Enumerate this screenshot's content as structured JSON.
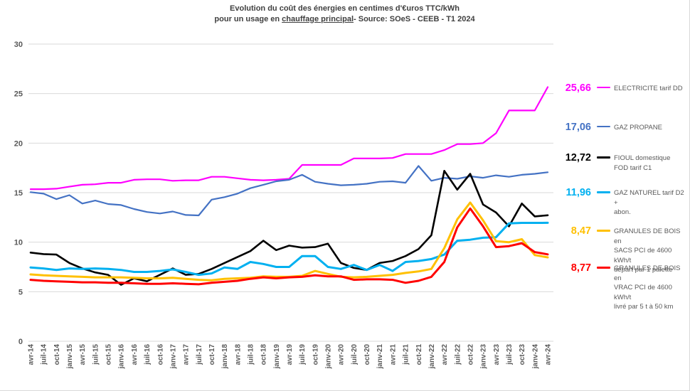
{
  "title": {
    "line1": "Evolution du coût des énergies en centimes d'€uros TTC/kWh",
    "line2_prefix": "pour un usage en ",
    "line2_underlined": "chauffage principal",
    "line2_suffix": "- Source: SOeS - CEEB - T1 2024"
  },
  "chart_data": {
    "type": "line",
    "title": "Evolution du coût des énergies en centimes d'€uros TTC/kWh pour un usage en chauffage principal - Source: SOeS - CEEB - T1 2024",
    "xlabel": "",
    "ylabel": "centimes d'euros TTC/kWh",
    "ylim": [
      0,
      30
    ],
    "y_ticks": [
      "0",
      "5",
      "10",
      "15",
      "20",
      "25",
      "30"
    ],
    "grid": "horizontal",
    "legend_position": "right",
    "x_labels": [
      "avr-14",
      "juil-14",
      "oct-14",
      "janv-15",
      "avr-15",
      "juil-15",
      "oct-15",
      "janv-16",
      "avr-16",
      "juil-16",
      "oct-16",
      "janv-17",
      "avr-17",
      "juil-17",
      "oct-17",
      "janv-18",
      "avr-18",
      "juil-18",
      "oct-18",
      "janv-19",
      "avr-19",
      "juil-19",
      "oct-19",
      "janv-20",
      "avr-20",
      "juil-20",
      "oct-20",
      "janv-21",
      "avr-21",
      "juil-21",
      "oct-21",
      "janv-22",
      "avr-22",
      "juil-22",
      "oct-22",
      "janv-23",
      "avr-23",
      "juil-23",
      "oct-23",
      "janv-24",
      "avr-24"
    ],
    "series": [
      {
        "name": "ELECTRICITE tarif DD",
        "color": "#FF00FF",
        "last_value_label": "25,66",
        "legend_lines": [
          "ELECTRICITE tarif DD"
        ],
        "values": [
          15.35,
          15.35,
          15.4,
          15.6,
          15.8,
          15.85,
          16.0,
          16.0,
          16.3,
          16.35,
          16.35,
          16.2,
          16.25,
          16.25,
          16.6,
          16.6,
          16.45,
          16.3,
          16.25,
          16.3,
          16.4,
          17.8,
          17.8,
          17.8,
          17.8,
          18.45,
          18.45,
          18.45,
          18.5,
          18.9,
          18.9,
          18.9,
          19.3,
          19.9,
          19.9,
          20.0,
          21.0,
          23.3,
          23.3,
          23.3,
          25.66
        ]
      },
      {
        "name": "GAZ PROPANE",
        "color": "#4472C4",
        "last_value_label": "17,06",
        "legend_lines": [
          "GAZ PROPANE"
        ],
        "values": [
          15.05,
          14.9,
          14.35,
          14.75,
          13.9,
          14.2,
          13.85,
          13.75,
          13.35,
          13.05,
          12.9,
          13.1,
          12.75,
          12.7,
          14.3,
          14.55,
          14.9,
          15.45,
          15.8,
          16.15,
          16.3,
          16.8,
          16.1,
          15.9,
          15.75,
          15.8,
          15.9,
          16.1,
          16.15,
          16.0,
          17.7,
          16.2,
          16.5,
          16.4,
          16.65,
          16.5,
          16.75,
          16.6,
          16.8,
          16.9,
          17.06
        ]
      },
      {
        "name": "FIOUL domestique FOD tarif C1",
        "color": "#000000",
        "last_value_label": "12,72",
        "legend_lines": [
          "FIOUL domestique",
          "FOD tarif C1"
        ],
        "values": [
          8.95,
          8.8,
          8.75,
          7.9,
          7.35,
          6.95,
          6.7,
          5.7,
          6.35,
          6.05,
          6.7,
          7.35,
          6.7,
          6.8,
          7.3,
          7.9,
          8.5,
          9.1,
          10.15,
          9.2,
          9.65,
          9.45,
          9.5,
          9.85,
          7.9,
          7.4,
          7.2,
          7.9,
          8.1,
          8.6,
          9.3,
          10.7,
          17.2,
          15.3,
          16.9,
          13.8,
          13.0,
          11.6,
          13.9,
          12.6,
          12.72
        ]
      },
      {
        "name": "GAZ NATUREL tarif D2 + abon.",
        "color": "#00B0F0",
        "last_value_label": "11,96",
        "legend_lines": [
          "GAZ NATUREL tarif D2 +",
          "abon."
        ],
        "values": [
          7.45,
          7.35,
          7.2,
          7.35,
          7.3,
          7.35,
          7.3,
          7.2,
          7.0,
          7.0,
          7.1,
          7.25,
          7.0,
          6.7,
          6.85,
          7.45,
          7.3,
          8.0,
          7.8,
          7.5,
          7.5,
          8.6,
          8.6,
          7.5,
          7.3,
          7.7,
          7.2,
          7.7,
          7.1,
          8.0,
          8.1,
          8.3,
          8.75,
          10.15,
          10.25,
          10.45,
          10.5,
          11.9,
          11.95,
          11.95,
          11.96
        ]
      },
      {
        "name": "GRANULES DE BOIS en SACS PCI de 4600 kWh/t départ par 1 palette",
        "color": "#FFC000",
        "last_value_label": "8,47",
        "legend_lines": [
          "GRANULES DE BOIS en",
          "SACS PCI de 4600 kWh/t",
          "départ par 1 palette"
        ],
        "values": [
          6.75,
          6.65,
          6.6,
          6.55,
          6.5,
          6.45,
          6.45,
          6.45,
          6.4,
          6.35,
          6.35,
          6.4,
          6.3,
          6.2,
          6.15,
          6.3,
          6.35,
          6.4,
          6.55,
          6.5,
          6.5,
          6.6,
          7.1,
          6.8,
          6.5,
          6.45,
          6.5,
          6.6,
          6.7,
          6.9,
          7.05,
          7.3,
          9.4,
          12.3,
          14.0,
          12.2,
          10.1,
          10.0,
          10.3,
          8.7,
          8.47
        ]
      },
      {
        "name": "GRANULES DE BOIS en VRAC PCI de 4600 kWh/t livré par 5 t à 50 km",
        "color": "#FF0000",
        "last_value_label": "8,77",
        "legend_lines": [
          "GRANULES DE BOIS en",
          "VRAC  PCI de 4600 kWh/t",
          "livré par 5 t à 50 km"
        ],
        "values": [
          6.2,
          6.1,
          6.05,
          6.0,
          5.95,
          5.95,
          5.9,
          5.9,
          5.85,
          5.8,
          5.8,
          5.85,
          5.8,
          5.75,
          5.9,
          6.0,
          6.1,
          6.3,
          6.45,
          6.35,
          6.45,
          6.5,
          6.65,
          6.55,
          6.55,
          6.2,
          6.25,
          6.25,
          6.2,
          5.9,
          6.1,
          6.5,
          8.0,
          11.5,
          13.4,
          11.6,
          9.5,
          9.6,
          9.9,
          9.0,
          8.77
        ]
      }
    ]
  }
}
